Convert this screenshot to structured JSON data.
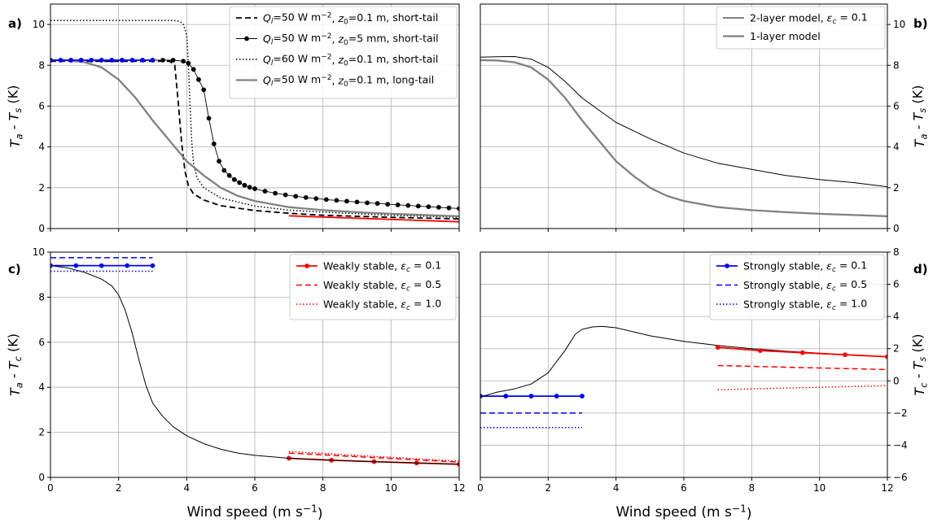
{
  "colors": {
    "black": "#000000",
    "gray": "#808080",
    "red": "#ff0000",
    "blue": "#0000ff",
    "grid": "#b0b0b0"
  },
  "chart_data": [
    {
      "panel": "a)",
      "type": "line",
      "xlabel": "",
      "ylabel": "T_a - T_s (K)",
      "xlim": [
        0,
        12
      ],
      "ylim": [
        0,
        11
      ],
      "xticks": [
        0,
        2,
        4,
        6,
        8,
        10,
        12
      ],
      "yticks": [
        0,
        2,
        4,
        6,
        8,
        10
      ],
      "yaxis_side": "left",
      "show_xticklabels": false,
      "legend_position": "top-right",
      "grid": true,
      "series": [
        {
          "name": "Q_l=50 W m^-2, z_0=0.1 m, short-tail",
          "legend": true,
          "color": "#000000",
          "width": 1.8,
          "dash": "7,4",
          "marker": false,
          "x": [
            0,
            1,
            2,
            3,
            3.5,
            3.65,
            3.75,
            3.85,
            3.95,
            4.05,
            4.2,
            4.5,
            5,
            6,
            7,
            8,
            10,
            12
          ],
          "y": [
            8.2,
            8.2,
            8.2,
            8.2,
            8.2,
            8.0,
            6.2,
            4.2,
            2.8,
            2.1,
            1.7,
            1.4,
            1.12,
            0.88,
            0.75,
            0.65,
            0.55,
            0.47
          ]
        },
        {
          "name": "Q_l=50 W m^-2, z_0=5 mm, short-tail",
          "legend": true,
          "color": "#000000",
          "width": 0.9,
          "dash": "",
          "marker": true,
          "x": [
            0,
            0.3,
            0.6,
            0.9,
            1.2,
            1.5,
            1.8,
            2.1,
            2.4,
            2.7,
            3.0,
            3.3,
            3.6,
            3.9,
            4.05,
            4.2,
            4.35,
            4.5,
            4.65,
            4.8,
            4.95,
            5.1,
            5.25,
            5.4,
            5.55,
            5.7,
            5.85,
            6.0,
            6.3,
            6.6,
            6.9,
            7.2,
            7.5,
            7.8,
            8.1,
            8.4,
            8.7,
            9.0,
            9.3,
            9.6,
            9.9,
            10.2,
            10.5,
            10.8,
            11.1,
            11.4,
            11.7,
            12.0
          ],
          "y": [
            8.25,
            8.25,
            8.25,
            8.25,
            8.25,
            8.25,
            8.25,
            8.25,
            8.25,
            8.25,
            8.25,
            8.25,
            8.25,
            8.2,
            8.1,
            7.8,
            7.3,
            6.8,
            5.4,
            4.15,
            3.3,
            2.85,
            2.6,
            2.4,
            2.25,
            2.12,
            2.02,
            1.95,
            1.83,
            1.73,
            1.65,
            1.58,
            1.52,
            1.47,
            1.42,
            1.38,
            1.34,
            1.3,
            1.26,
            1.23,
            1.19,
            1.16,
            1.13,
            1.1,
            1.07,
            1.04,
            1.01,
            0.98
          ]
        },
        {
          "name": "Q_l=60 W m^-2, z_0=0.1 m, short-tail",
          "legend": true,
          "color": "#000000",
          "width": 1.5,
          "dash": "1.5,2.5",
          "marker": false,
          "x": [
            0,
            1,
            2,
            3,
            3.6,
            3.8,
            3.9,
            4.0,
            4.05,
            4.1,
            4.15,
            4.2,
            4.3,
            4.5,
            5,
            6,
            7,
            8,
            10,
            12
          ],
          "y": [
            10.2,
            10.2,
            10.2,
            10.2,
            10.2,
            10.15,
            10.0,
            9.5,
            8.0,
            6.0,
            4.2,
            3.2,
            2.5,
            2.0,
            1.5,
            1.1,
            0.9,
            0.8,
            0.65,
            0.55
          ]
        },
        {
          "name": "Q_l=50 W m^-2, z_0=0.1 m, long-tail",
          "legend": true,
          "color": "#808080",
          "width": 2.3,
          "dash": "",
          "marker": false,
          "x": [
            0,
            0.5,
            1,
            1.5,
            2,
            2.5,
            3,
            3.5,
            4,
            4.5,
            5,
            5.5,
            6,
            7,
            8,
            9,
            10,
            11,
            12
          ],
          "y": [
            8.25,
            8.24,
            8.15,
            7.9,
            7.3,
            6.4,
            5.3,
            4.3,
            3.3,
            2.6,
            2.0,
            1.6,
            1.35,
            1.05,
            0.9,
            0.8,
            0.72,
            0.66,
            0.6
          ]
        },
        {
          "name": "blue",
          "legend": false,
          "color": "#0000ff",
          "width": 1.8,
          "dash": "",
          "marker": true,
          "x": [
            0,
            0.3,
            0.6,
            0.9,
            1.2,
            1.5,
            1.8,
            2.1,
            2.4,
            2.7,
            3.0
          ],
          "y": [
            8.25,
            8.25,
            8.25,
            8.25,
            8.25,
            8.25,
            8.25,
            8.25,
            8.25,
            8.25,
            8.25
          ]
        },
        {
          "name": "red",
          "legend": false,
          "color": "#ff0000",
          "width": 1.8,
          "dash": "",
          "marker": false,
          "x": [
            7,
            12
          ],
          "y": [
            0.62,
            0.33
          ]
        }
      ]
    },
    {
      "panel": "b)",
      "type": "line",
      "xlabel": "",
      "ylabel": "T_a - T_s (K)",
      "xlim": [
        0,
        12
      ],
      "ylim": [
        0,
        11
      ],
      "xticks": [
        0,
        2,
        4,
        6,
        8,
        10,
        12
      ],
      "yticks": [
        0,
        2,
        4,
        6,
        8,
        10
      ],
      "yaxis_side": "right",
      "show_xticklabels": false,
      "legend_position": "top-right",
      "grid": true,
      "series": [
        {
          "name": "2-layer model, ε_c = 0.1",
          "legend": true,
          "color": "#000000",
          "width": 1.0,
          "dash": "",
          "marker": false,
          "x": [
            0,
            0.5,
            1,
            1.5,
            2,
            2.5,
            3,
            3.5,
            4,
            5,
            6,
            7,
            8,
            9,
            10,
            11,
            12
          ],
          "y": [
            8.4,
            8.42,
            8.43,
            8.3,
            7.9,
            7.2,
            6.4,
            5.8,
            5.2,
            4.4,
            3.7,
            3.2,
            2.9,
            2.6,
            2.4,
            2.25,
            2.05
          ]
        },
        {
          "name": "1-layer model",
          "legend": true,
          "color": "#808080",
          "width": 2.3,
          "dash": "",
          "marker": false,
          "x": [
            0,
            0.5,
            1,
            1.5,
            2,
            2.5,
            3,
            3.5,
            4,
            4.5,
            5,
            5.5,
            6,
            7,
            8,
            9,
            10,
            11,
            12
          ],
          "y": [
            8.25,
            8.24,
            8.15,
            7.9,
            7.3,
            6.4,
            5.3,
            4.3,
            3.3,
            2.6,
            2.0,
            1.6,
            1.35,
            1.05,
            0.9,
            0.8,
            0.72,
            0.66,
            0.6
          ]
        }
      ]
    },
    {
      "panel": "c)",
      "type": "line",
      "xlabel": "Wind speed (m s^-1)",
      "ylabel": "T_a - T_c (K)",
      "xlim": [
        0,
        12
      ],
      "ylim": [
        0,
        10
      ],
      "xticks": [
        0,
        2,
        4,
        6,
        8,
        10,
        12
      ],
      "yticks": [
        0,
        2,
        4,
        6,
        8,
        10
      ],
      "yaxis_side": "left",
      "show_xticklabels": true,
      "legend_position": "top-right",
      "grid": true,
      "series": [
        {
          "name": "Weakly stable, ε_c = 0.1",
          "legend": true,
          "color": "#ff0000",
          "width": 1.8,
          "dash": "",
          "marker": true,
          "x": [
            7,
            8.25,
            9.5,
            10.75,
            12
          ],
          "y": [
            0.85,
            0.76,
            0.7,
            0.64,
            0.58
          ]
        },
        {
          "name": "Weakly stable, ε_c = 0.5",
          "legend": true,
          "color": "#ff0000",
          "width": 1.5,
          "dash": "7,4",
          "marker": false,
          "x": [
            7,
            12
          ],
          "y": [
            1.08,
            0.68
          ]
        },
        {
          "name": "Weakly stable, ε_c = 1.0",
          "legend": true,
          "color": "#ff0000",
          "width": 1.5,
          "dash": "1.5,2.5",
          "marker": false,
          "x": [
            7,
            12
          ],
          "y": [
            1.15,
            0.72
          ]
        },
        {
          "name": "model",
          "legend": false,
          "color": "#000000",
          "width": 1.0,
          "dash": "",
          "marker": false,
          "x": [
            0,
            0.5,
            1,
            1.5,
            1.8,
            2.0,
            2.2,
            2.4,
            2.6,
            2.8,
            3.0,
            3.3,
            3.6,
            4.0,
            4.5,
            5,
            5.5,
            6,
            7,
            8,
            9,
            10,
            11,
            12
          ],
          "y": [
            9.4,
            9.3,
            9.1,
            8.8,
            8.5,
            8.1,
            7.4,
            6.4,
            5.2,
            4.1,
            3.3,
            2.7,
            2.25,
            1.85,
            1.5,
            1.25,
            1.08,
            0.98,
            0.85,
            0.78,
            0.72,
            0.67,
            0.63,
            0.59
          ]
        },
        {
          "name": "blue solid",
          "legend": false,
          "color": "#0000ff",
          "width": 1.8,
          "dash": "",
          "marker": true,
          "x": [
            0,
            0.75,
            1.5,
            2.25,
            3.0
          ],
          "y": [
            9.4,
            9.4,
            9.4,
            9.4,
            9.4
          ]
        },
        {
          "name": "blue dashed",
          "legend": false,
          "color": "#0000ff",
          "width": 1.5,
          "dash": "7,4",
          "marker": false,
          "x": [
            0,
            3
          ],
          "y": [
            9.75,
            9.75
          ]
        },
        {
          "name": "blue dotted",
          "legend": false,
          "color": "#0000ff",
          "width": 1.5,
          "dash": "1.5,2.5",
          "marker": false,
          "x": [
            0,
            3
          ],
          "y": [
            9.15,
            9.15
          ]
        }
      ]
    },
    {
      "panel": "d)",
      "type": "line",
      "xlabel": "Wind speed (m s^-1)",
      "ylabel": "T_c - T_s (K)",
      "xlim": [
        0,
        12
      ],
      "ylim": [
        -6,
        8
      ],
      "xticks": [
        0,
        2,
        4,
        6,
        8,
        10,
        12
      ],
      "yticks": [
        -6,
        -4,
        -2,
        0,
        2,
        4,
        6,
        8
      ],
      "yaxis_side": "right",
      "show_xticklabels": true,
      "legend_position": "top-right",
      "grid": true,
      "series": [
        {
          "name": "Strongly stable, ε_c = 0.1",
          "legend": true,
          "color": "#0000ff",
          "width": 1.8,
          "dash": "",
          "marker": true,
          "x": [
            0,
            0.75,
            1.5,
            2.25,
            3.0
          ],
          "y": [
            -0.95,
            -0.95,
            -0.95,
            -0.95,
            -0.95
          ]
        },
        {
          "name": "Strongly stable, ε_c = 0.5",
          "legend": true,
          "color": "#0000ff",
          "width": 1.5,
          "dash": "7,4",
          "marker": false,
          "x": [
            0,
            3
          ],
          "y": [
            -2.0,
            -2.0
          ]
        },
        {
          "name": "Strongly stable, ε_c = 1.0",
          "legend": true,
          "color": "#0000ff",
          "width": 1.5,
          "dash": "1.5,2.5",
          "marker": false,
          "x": [
            0,
            3
          ],
          "y": [
            -2.9,
            -2.9
          ]
        },
        {
          "name": "model",
          "legend": false,
          "color": "#000000",
          "width": 1.0,
          "dash": "",
          "marker": false,
          "x": [
            0,
            0.5,
            1,
            1.5,
            2,
            2.5,
            2.8,
            3.0,
            3.3,
            3.6,
            4.0,
            4.5,
            5,
            6,
            7,
            8,
            9,
            10,
            11,
            12
          ],
          "y": [
            -1.0,
            -0.7,
            -0.5,
            -0.2,
            0.5,
            1.9,
            2.9,
            3.2,
            3.35,
            3.38,
            3.3,
            3.05,
            2.8,
            2.45,
            2.2,
            2.0,
            1.85,
            1.72,
            1.6,
            1.5
          ]
        },
        {
          "name": "red solid",
          "legend": false,
          "color": "#ff0000",
          "width": 1.8,
          "dash": "",
          "marker": true,
          "x": [
            7,
            8.25,
            9.5,
            10.75,
            12
          ],
          "y": [
            2.08,
            1.88,
            1.75,
            1.62,
            1.5
          ]
        },
        {
          "name": "red dashed",
          "legend": false,
          "color": "#ff0000",
          "width": 1.5,
          "dash": "7,4",
          "marker": false,
          "x": [
            7,
            12
          ],
          "y": [
            0.95,
            0.7
          ]
        },
        {
          "name": "red dotted",
          "legend": false,
          "color": "#ff0000",
          "width": 1.5,
          "dash": "1.5,2.5",
          "marker": false,
          "x": [
            7,
            12
          ],
          "y": [
            -0.55,
            -0.3
          ]
        }
      ]
    }
  ]
}
